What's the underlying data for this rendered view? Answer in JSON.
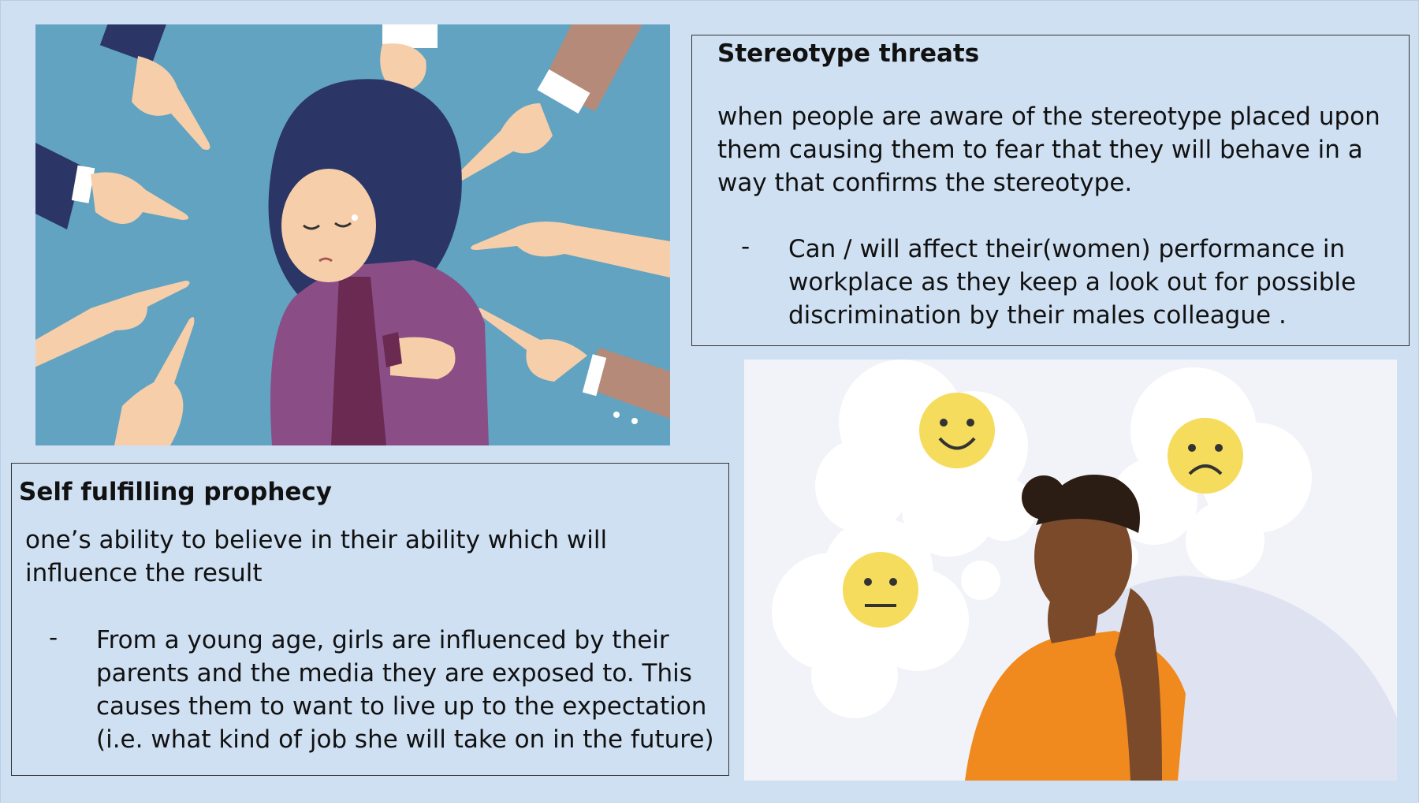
{
  "stereotype": {
    "heading": "Stereotype threats",
    "definition": "when people are aware of the stereotype placed upon them causing them to fear that they will behave in a way that confirms the stereotype.",
    "bullet_marker": "-",
    "bullet": "Can / will affect their(women) performance in workplace as they keep a look out for possible discrimination by their males colleague ."
  },
  "self_fulfilling": {
    "heading": "Self fulfilling prophecy",
    "definition": "one’s ability to believe in their ability which will influence the result",
    "bullet_marker": "-",
    "bullet": "From a young age, girls are influenced by their parents and the media they are exposed to.  This causes them to want to live up to the expectation (i.e. what kind of job she will take on in the future)"
  },
  "illustrations": {
    "left": "woman-pointed-at-illustration",
    "right": "woman-thinking-emotions-illustration"
  },
  "colors": {
    "background": "#cfe0f3",
    "left_image_bg": "#62a3c1",
    "jacket": "#8a4d86",
    "emoji": "#f6dc5c",
    "shirt": "#f0891e"
  }
}
